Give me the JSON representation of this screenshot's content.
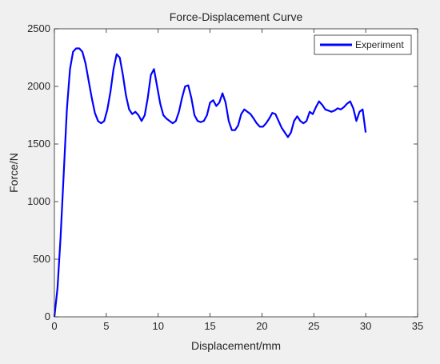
{
  "chart_data": {
    "type": "line",
    "title": "Force-Displacement Curve",
    "xlabel": "Displacement/mm",
    "ylabel": "Force/N",
    "xlim": [
      0,
      35
    ],
    "ylim": [
      0,
      2500
    ],
    "xticks": [
      0,
      5,
      10,
      15,
      20,
      25,
      30,
      35
    ],
    "yticks": [
      0,
      500,
      1000,
      1500,
      2000,
      2500
    ],
    "grid": false,
    "legend_position": "top-right",
    "series": [
      {
        "name": "Experiment",
        "color": "#0000ff",
        "x": [
          0,
          0.3,
          0.6,
          0.9,
          1.2,
          1.5,
          1.8,
          2.1,
          2.4,
          2.7,
          3.0,
          3.3,
          3.6,
          3.9,
          4.2,
          4.5,
          4.8,
          5.1,
          5.4,
          5.7,
          6.0,
          6.3,
          6.6,
          6.9,
          7.2,
          7.5,
          7.8,
          8.1,
          8.4,
          8.7,
          9.0,
          9.3,
          9.6,
          9.9,
          10.2,
          10.5,
          10.8,
          11.1,
          11.4,
          11.7,
          12.0,
          12.3,
          12.6,
          12.9,
          13.2,
          13.5,
          13.8,
          14.1,
          14.4,
          14.7,
          15.0,
          15.3,
          15.6,
          15.9,
          16.2,
          16.5,
          16.8,
          17.1,
          17.4,
          17.7,
          18.0,
          18.3,
          18.6,
          18.9,
          19.2,
          19.5,
          19.8,
          20.1,
          20.4,
          20.7,
          21.0,
          21.3,
          21.6,
          21.9,
          22.2,
          22.5,
          22.8,
          23.1,
          23.4,
          23.7,
          24.0,
          24.3,
          24.6,
          24.9,
          25.2,
          25.5,
          25.8,
          26.1,
          26.4,
          26.7,
          27.0,
          27.3,
          27.6,
          27.9,
          28.2,
          28.5,
          28.8,
          29.1,
          29.4,
          29.7,
          30.0
        ],
        "y": [
          0,
          250,
          700,
          1250,
          1800,
          2150,
          2300,
          2330,
          2330,
          2300,
          2200,
          2050,
          1900,
          1770,
          1700,
          1680,
          1700,
          1800,
          1950,
          2150,
          2280,
          2250,
          2100,
          1920,
          1800,
          1760,
          1780,
          1750,
          1700,
          1750,
          1900,
          2100,
          2150,
          2000,
          1850,
          1750,
          1720,
          1700,
          1680,
          1700,
          1780,
          1900,
          2000,
          2010,
          1900,
          1750,
          1700,
          1690,
          1700,
          1750,
          1860,
          1880,
          1830,
          1860,
          1940,
          1860,
          1700,
          1620,
          1620,
          1660,
          1760,
          1800,
          1780,
          1760,
          1720,
          1680,
          1650,
          1650,
          1680,
          1720,
          1770,
          1760,
          1700,
          1640,
          1600,
          1560,
          1600,
          1700,
          1740,
          1700,
          1680,
          1700,
          1780,
          1760,
          1820,
          1870,
          1840,
          1800,
          1790,
          1780,
          1790,
          1810,
          1800,
          1820,
          1850,
          1870,
          1810,
          1700,
          1780,
          1800,
          1600
        ]
      }
    ]
  }
}
